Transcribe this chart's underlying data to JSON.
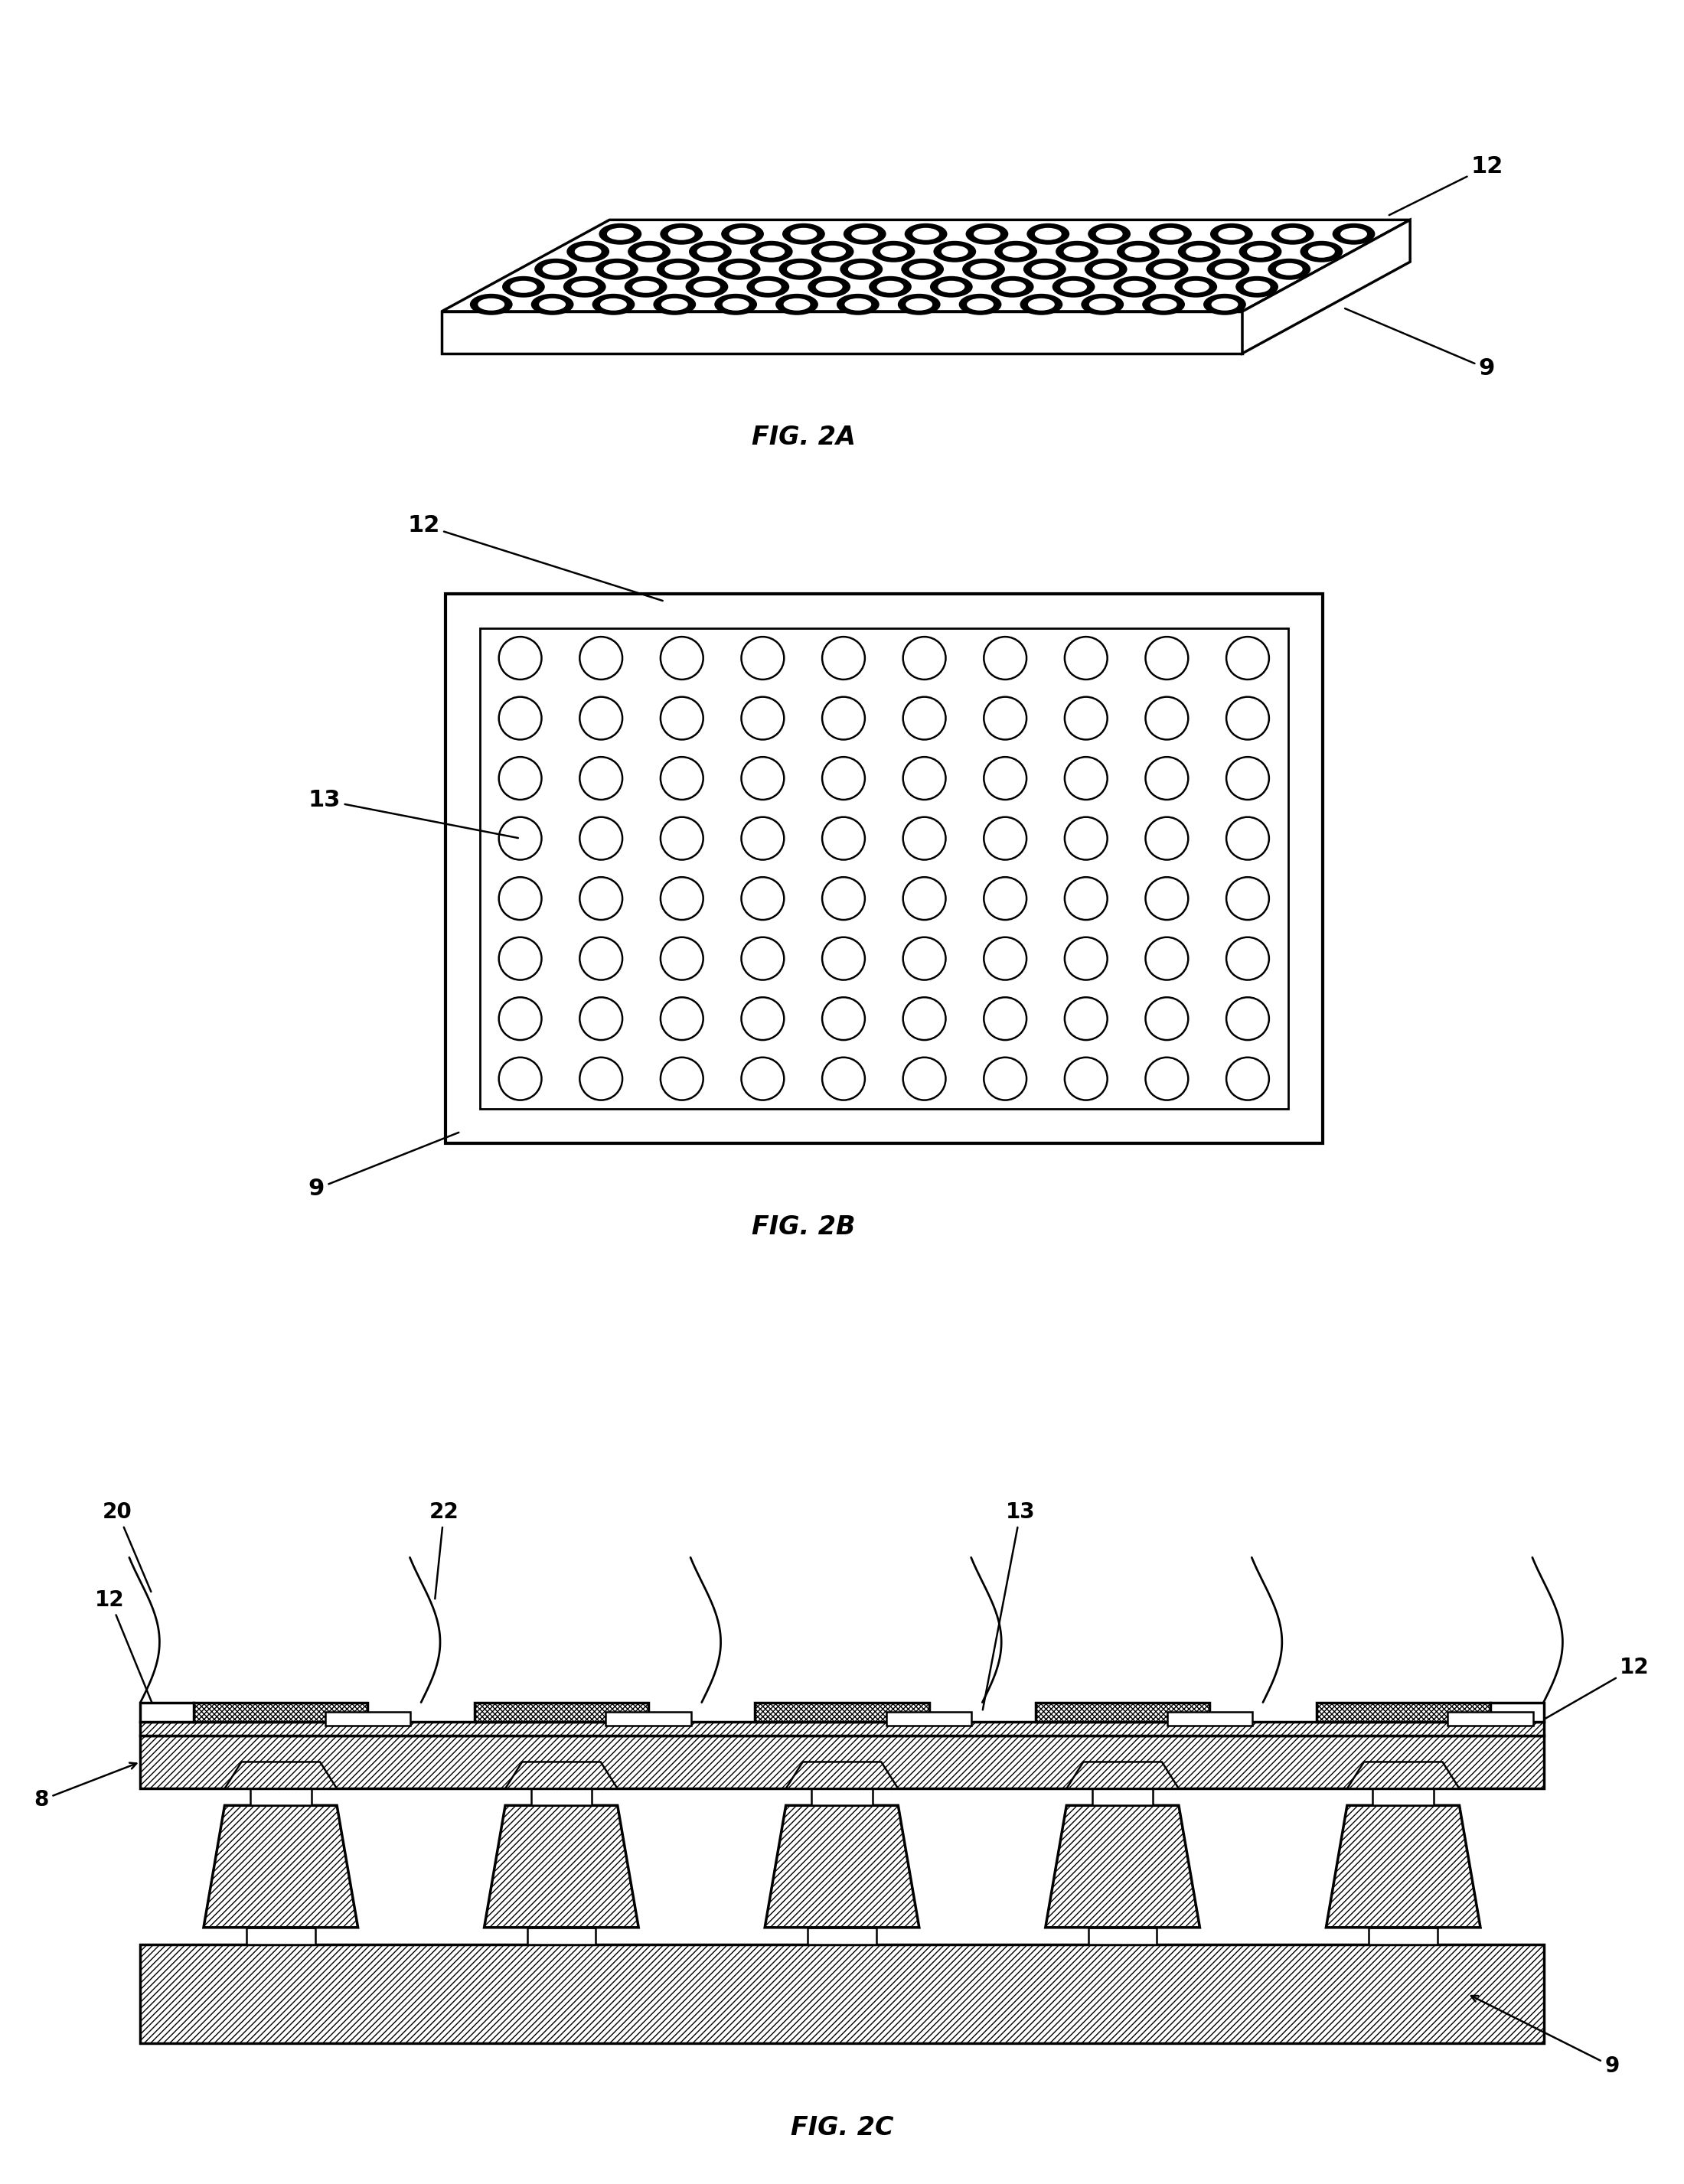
{
  "bg_color": "#ffffff",
  "fig_width": 22.0,
  "fig_height": 28.54,
  "fig2a_label": "FIG. 2A",
  "fig2b_label": "FIG. 2B",
  "fig2c_label": "FIG. 2C",
  "label_12_2a": "12",
  "label_9_2a": "9",
  "label_12_2b": "12",
  "label_9_2b": "9",
  "label_13_2b": "13",
  "label_20_2c": "20",
  "label_22_2c": "22",
  "label_12_2c_left": "12",
  "label_12_2c_right": "12",
  "label_13_2c": "13",
  "label_8_2c": "8",
  "label_9_2c": "9"
}
